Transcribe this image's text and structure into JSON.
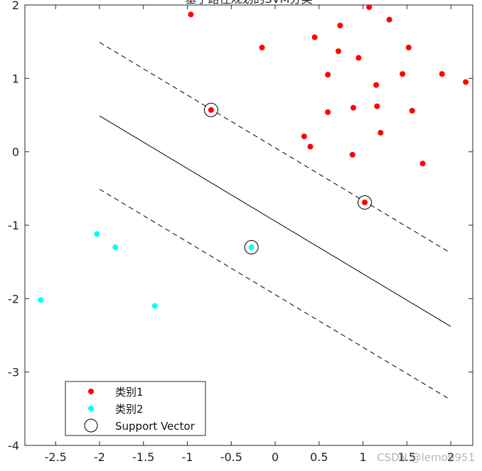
{
  "chart_data": {
    "type": "scatter",
    "title": "基于路径规划的SVM分类",
    "xlabel": "",
    "ylabel": "",
    "xlim": [
      -2.85,
      2.25
    ],
    "ylim": [
      -4,
      2
    ],
    "xticks": [
      -2.5,
      -2,
      -1.5,
      -1,
      -0.5,
      0,
      0.5,
      1,
      1.5,
      2
    ],
    "yticks": [
      -4,
      -3,
      -2,
      -1,
      0,
      1,
      2
    ],
    "xtick_labels": [
      "-2.5",
      "-2",
      "-1.5",
      "-1",
      "-0.5",
      "0",
      "0.5",
      "1",
      "1.5",
      "2"
    ],
    "ytick_labels": [
      "-4",
      "-3",
      "-2",
      "-1",
      "0",
      "1",
      "2"
    ],
    "grid": false,
    "legend_position": "bottom-left",
    "series": [
      {
        "name": "类别1",
        "color": "#ff0000",
        "marker": "filled-circle",
        "points": [
          [
            -0.96,
            1.87
          ],
          [
            1.07,
            1.97
          ],
          [
            0.74,
            1.72
          ],
          [
            1.3,
            1.8
          ],
          [
            0.45,
            1.56
          ],
          [
            -0.15,
            1.42
          ],
          [
            0.72,
            1.37
          ],
          [
            0.95,
            1.28
          ],
          [
            1.52,
            1.42
          ],
          [
            0.6,
            1.05
          ],
          [
            1.45,
            1.06
          ],
          [
            1.9,
            1.06
          ],
          [
            2.17,
            0.95
          ],
          [
            1.15,
            0.91
          ],
          [
            -0.73,
            0.57
          ],
          [
            0.6,
            0.54
          ],
          [
            0.89,
            0.6
          ],
          [
            1.16,
            0.62
          ],
          [
            1.56,
            0.56
          ],
          [
            0.33,
            0.21
          ],
          [
            1.2,
            0.26
          ],
          [
            0.4,
            0.07
          ],
          [
            0.88,
            -0.04
          ],
          [
            1.68,
            -0.16
          ],
          [
            1.02,
            -0.69
          ]
        ]
      },
      {
        "name": "类别2",
        "color": "#00ffff",
        "marker": "filled-circle",
        "points": [
          [
            -2.03,
            -1.12
          ],
          [
            -1.82,
            -1.3
          ],
          [
            -2.67,
            -2.02
          ],
          [
            -1.37,
            -2.1
          ],
          [
            -0.27,
            -1.3
          ]
        ]
      },
      {
        "name": "Support Vector",
        "color": "#000000",
        "marker": "open-circle",
        "points": [
          [
            -0.73,
            0.57
          ],
          [
            1.02,
            -0.69
          ],
          [
            -0.27,
            -1.3
          ]
        ]
      }
    ],
    "lines": [
      {
        "role": "decision-boundary",
        "style": "solid",
        "x": [
          -2,
          2
        ],
        "y": [
          0.49,
          -2.38
        ]
      },
      {
        "role": "margin-upper",
        "style": "dashed",
        "x": [
          -2,
          2
        ],
        "y": [
          1.49,
          -1.38
        ]
      },
      {
        "role": "margin-lower",
        "style": "dashed",
        "x": [
          -2,
          2
        ],
        "y": [
          -0.51,
          -3.38
        ]
      }
    ],
    "legend": [
      "类别1",
      "类别2",
      "Support Vector"
    ]
  },
  "watermark": "CSDN @lemon951"
}
